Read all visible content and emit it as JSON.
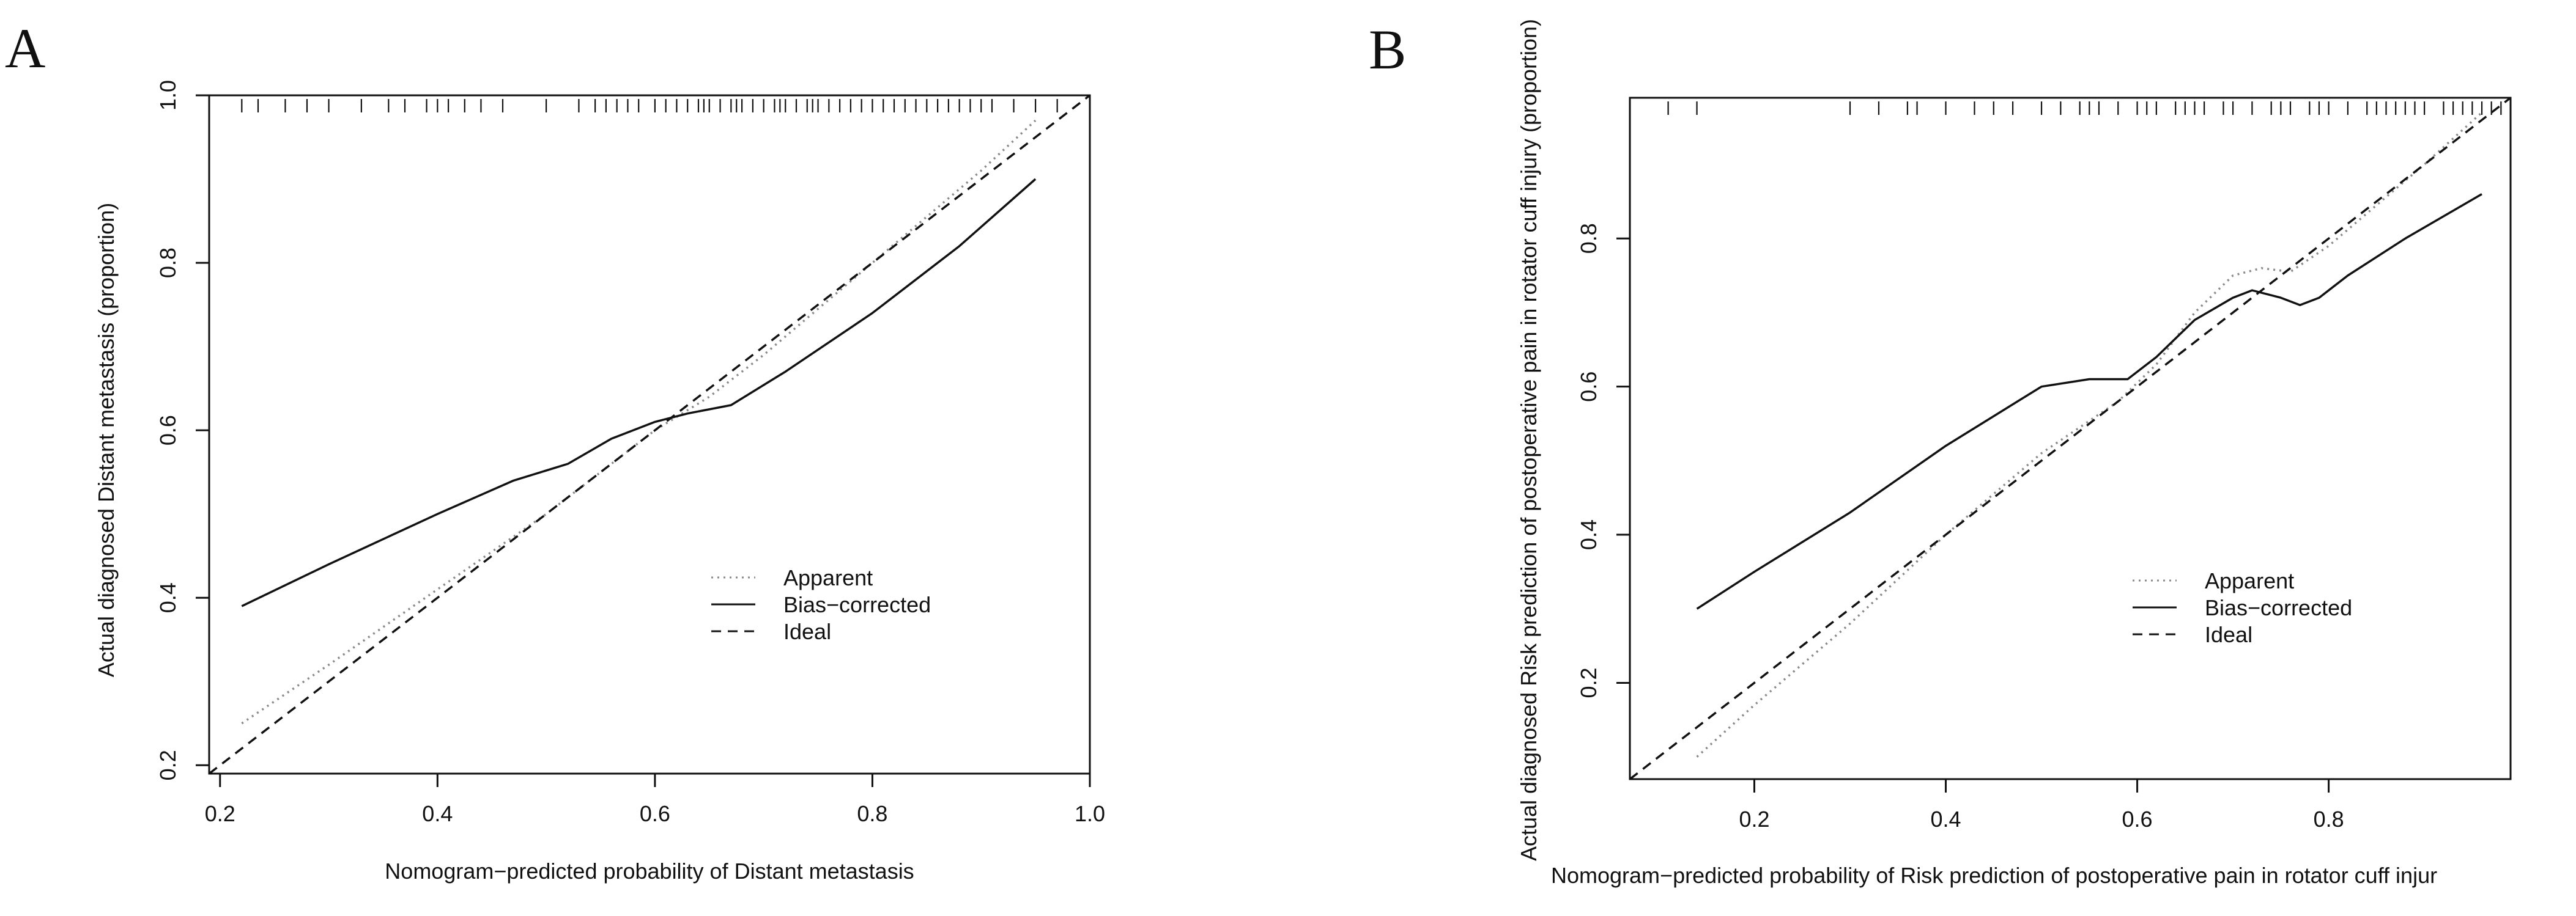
{
  "colors": {
    "line": "#111111",
    "apparent": "#8a8a8a",
    "background": "#ffffff"
  },
  "chart_data": [
    {
      "type": "line",
      "panel_label": "A",
      "xlabel": "Nomogram−predicted probability of Distant metastasis",
      "ylabel": "Actual diagnosed Distant metastasis (proportion)",
      "xlim": [
        0.19,
        1.0
      ],
      "ylim": [
        0.19,
        1.0
      ],
      "x_ticks": [
        0.2,
        0.4,
        0.6,
        0.8,
        1.0
      ],
      "x_tick_labels": [
        "0.2",
        "0.4",
        "0.6",
        "0.8",
        "1.0"
      ],
      "y_ticks": [
        0.2,
        0.4,
        0.6,
        0.8,
        1.0
      ],
      "y_tick_labels": [
        "0.2",
        "0.4",
        "0.6",
        "0.8",
        "1.0"
      ],
      "grid": false,
      "legend_position": "bottom-right",
      "series": [
        {
          "name": "Apparent",
          "style": "dotted",
          "x": [
            0.22,
            0.3,
            0.4,
            0.5,
            0.55,
            0.6,
            0.65,
            0.7,
            0.8,
            0.9,
            0.95
          ],
          "y": [
            0.25,
            0.32,
            0.41,
            0.5,
            0.55,
            0.6,
            0.64,
            0.69,
            0.8,
            0.91,
            0.97
          ]
        },
        {
          "name": "Bias−corrected",
          "style": "solid",
          "x": [
            0.22,
            0.3,
            0.4,
            0.47,
            0.52,
            0.56,
            0.6,
            0.63,
            0.67,
            0.72,
            0.8,
            0.88,
            0.95
          ],
          "y": [
            0.39,
            0.44,
            0.5,
            0.54,
            0.56,
            0.59,
            0.61,
            0.62,
            0.63,
            0.67,
            0.74,
            0.82,
            0.9
          ]
        },
        {
          "name": "Ideal",
          "style": "dashed",
          "x": [
            0.19,
            1.0
          ],
          "y": [
            0.19,
            1.0
          ]
        }
      ],
      "rug": [
        0.22,
        0.235,
        0.26,
        0.28,
        0.3,
        0.33,
        0.355,
        0.37,
        0.39,
        0.4,
        0.41,
        0.425,
        0.44,
        0.46,
        0.5,
        0.53,
        0.545,
        0.555,
        0.565,
        0.575,
        0.585,
        0.6,
        0.61,
        0.62,
        0.63,
        0.64,
        0.645,
        0.65,
        0.66,
        0.67,
        0.675,
        0.68,
        0.69,
        0.7,
        0.71,
        0.715,
        0.72,
        0.73,
        0.74,
        0.745,
        0.75,
        0.76,
        0.77,
        0.78,
        0.79,
        0.8,
        0.81,
        0.82,
        0.83,
        0.84,
        0.85,
        0.86,
        0.87,
        0.88,
        0.89,
        0.9,
        0.91,
        0.93,
        0.95,
        0.97
      ]
    },
    {
      "type": "line",
      "panel_label": "B",
      "xlabel": "Nomogram−predicted probability of Risk prediction of postoperative pain in rotator cuff injur",
      "ylabel": "Actual diagnosed Risk prediction of postoperative pain in rotator cuff injury (proportion)",
      "xlim": [
        0.07,
        0.99
      ],
      "ylim": [
        0.07,
        0.99
      ],
      "x_ticks": [
        0.2,
        0.4,
        0.6,
        0.8
      ],
      "x_tick_labels": [
        "0.2",
        "0.4",
        "0.6",
        "0.8"
      ],
      "y_ticks": [
        0.2,
        0.4,
        0.6,
        0.8
      ],
      "y_tick_labels": [
        "0.2",
        "0.4",
        "0.6",
        "0.8"
      ],
      "grid": false,
      "legend_position": "bottom-right",
      "series": [
        {
          "name": "Apparent",
          "style": "dotted",
          "x": [
            0.14,
            0.2,
            0.3,
            0.4,
            0.5,
            0.58,
            0.62,
            0.66,
            0.7,
            0.73,
            0.76,
            0.8,
            0.9,
            0.96
          ],
          "y": [
            0.1,
            0.17,
            0.28,
            0.4,
            0.51,
            0.58,
            0.63,
            0.7,
            0.75,
            0.76,
            0.755,
            0.79,
            0.9,
            0.97
          ]
        },
        {
          "name": "Bias−corrected",
          "style": "solid",
          "x": [
            0.14,
            0.2,
            0.3,
            0.4,
            0.45,
            0.5,
            0.55,
            0.59,
            0.62,
            0.66,
            0.7,
            0.72,
            0.75,
            0.77,
            0.79,
            0.82,
            0.88,
            0.96
          ],
          "y": [
            0.3,
            0.35,
            0.43,
            0.52,
            0.56,
            0.6,
            0.61,
            0.61,
            0.64,
            0.69,
            0.72,
            0.73,
            0.72,
            0.71,
            0.72,
            0.75,
            0.8,
            0.86
          ]
        },
        {
          "name": "Ideal",
          "style": "dashed",
          "x": [
            0.07,
            0.99
          ],
          "y": [
            0.07,
            0.99
          ]
        }
      ],
      "rug": [
        0.11,
        0.14,
        0.3,
        0.33,
        0.36,
        0.37,
        0.4,
        0.43,
        0.45,
        0.47,
        0.5,
        0.52,
        0.54,
        0.55,
        0.56,
        0.58,
        0.6,
        0.61,
        0.62,
        0.64,
        0.65,
        0.66,
        0.67,
        0.69,
        0.7,
        0.72,
        0.74,
        0.75,
        0.76,
        0.78,
        0.79,
        0.8,
        0.82,
        0.84,
        0.85,
        0.86,
        0.87,
        0.88,
        0.89,
        0.9,
        0.92,
        0.93,
        0.94,
        0.95,
        0.96,
        0.97,
        0.98
      ]
    }
  ]
}
